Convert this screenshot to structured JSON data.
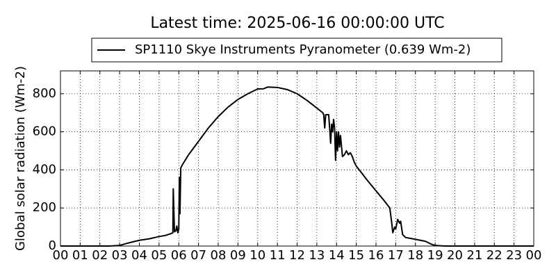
{
  "chart_data": {
    "type": "line",
    "title": "Latest time: 2025-06-16 00:00:00 UTC",
    "ylabel": "Global solar radiation (Wm-2)",
    "grid": true,
    "xlim": [
      0,
      24
    ],
    "xticks": [
      {
        "value": 0,
        "label": "00"
      },
      {
        "value": 1,
        "label": "01"
      },
      {
        "value": 2,
        "label": "02"
      },
      {
        "value": 3,
        "label": "03"
      },
      {
        "value": 4,
        "label": "04"
      },
      {
        "value": 5,
        "label": "05"
      },
      {
        "value": 6,
        "label": "06"
      },
      {
        "value": 7,
        "label": "07"
      },
      {
        "value": 8,
        "label": "08"
      },
      {
        "value": 9,
        "label": "09"
      },
      10,
      11,
      12,
      13,
      14,
      15,
      16,
      17,
      18,
      19,
      20,
      21,
      22,
      23,
      {
        "value": 24,
        "label": "00"
      }
    ],
    "ylim": [
      0,
      920
    ],
    "yticks": [
      0,
      200,
      400,
      600,
      800
    ],
    "x": [
      0,
      2.5,
      3.0,
      3.3,
      3.6,
      4.0,
      4.5,
      4.8,
      5.0,
      5.3,
      5.6,
      5.7,
      5.72,
      5.78,
      5.85,
      5.9,
      5.95,
      6.0,
      6.03,
      6.06,
      6.1,
      6.2,
      6.5,
      7.0,
      7.5,
      8.0,
      8.5,
      9.0,
      9.5,
      10.0,
      10.3,
      10.5,
      11.0,
      11.5,
      12.0,
      12.5,
      13.0,
      13.3,
      13.35,
      13.4,
      13.45,
      13.6,
      13.65,
      13.7,
      13.75,
      13.8,
      13.85,
      13.9,
      13.95,
      14.0,
      14.05,
      14.1,
      14.15,
      14.2,
      14.3,
      14.4,
      14.5,
      14.6,
      14.7,
      14.8,
      14.9,
      15.0,
      15.3,
      15.6,
      16.0,
      16.4,
      16.7,
      16.8,
      16.85,
      16.95,
      17.0,
      17.1,
      17.2,
      17.25,
      17.35,
      17.5,
      18.0,
      18.5,
      18.8,
      19.0,
      19.5,
      24
    ],
    "series": [
      {
        "name": "SP1110 Skye Instruments Pyranometer (0.639 Wm-2)",
        "color": "#000000",
        "values": [
          0,
          0,
          3,
          12,
          20,
          30,
          38,
          45,
          50,
          55,
          65,
          70,
          300,
          75,
          80,
          105,
          70,
          90,
          360,
          170,
          410,
          430,
          480,
          550,
          620,
          680,
          730,
          770,
          800,
          825,
          826,
          835,
          833,
          822,
          800,
          765,
          725,
          700,
          690,
          620,
          690,
          690,
          620,
          540,
          640,
          600,
          665,
          620,
          450,
          600,
          500,
          600,
          520,
          580,
          470,
          480,
          500,
          480,
          490,
          470,
          440,
          420,
          380,
          340,
          290,
          240,
          200,
          120,
          70,
          100,
          90,
          140,
          120,
          130,
          60,
          45,
          35,
          25,
          10,
          3,
          0,
          0
        ]
      }
    ]
  }
}
